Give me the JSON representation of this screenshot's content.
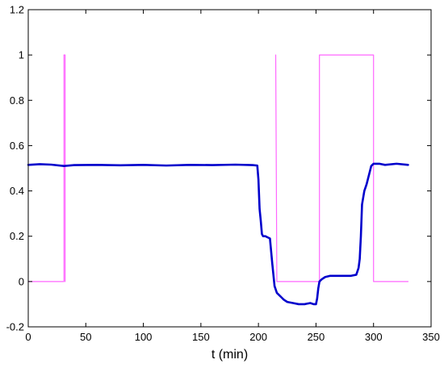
{
  "chart_data": {
    "type": "line",
    "title": "",
    "xlabel": "t (min)",
    "ylabel": "",
    "xlim": [
      0,
      350
    ],
    "ylim": [
      -0.2,
      1.2
    ],
    "x_ticks": [
      "0",
      "50",
      "100",
      "150",
      "200",
      "250",
      "300",
      "350"
    ],
    "y_ticks": [
      "-0.2",
      "0",
      "0.2",
      "0.4",
      "0.6",
      "0.8",
      "1",
      "1.2"
    ],
    "grid": false,
    "legend": "none",
    "series": [
      {
        "color": "#ff66ff",
        "style": "thin",
        "x": [
          0,
          31,
          31,
          32,
          32,
          126,
          215,
          215,
          216,
          217,
          217,
          253,
          253,
          254,
          254,
          300,
          300,
          301,
          301,
          330
        ],
        "y": [
          0,
          0,
          1,
          1,
          0,
          null,
          1,
          1,
          0,
          0,
          0,
          0,
          1,
          1,
          1,
          1,
          0,
          0,
          0,
          0
        ]
      },
      {
        "color": "#0000cc",
        "style": "thick",
        "x": [
          0,
          10,
          20,
          31,
          40,
          60,
          80,
          100,
          120,
          140,
          160,
          180,
          195,
          199,
          200,
          201,
          202,
          203,
          204,
          206,
          208,
          210,
          212,
          214,
          216,
          218,
          220,
          222,
          225,
          230,
          235,
          240,
          245,
          248,
          250,
          251,
          252,
          253,
          255,
          258,
          262,
          270,
          280,
          285,
          287,
          288,
          289,
          290,
          292,
          294,
          296,
          298,
          300,
          305,
          310,
          320,
          330
        ],
        "y": [
          0.515,
          0.518,
          0.516,
          0.51,
          0.514,
          0.515,
          0.513,
          0.515,
          0.512,
          0.515,
          0.514,
          0.516,
          0.514,
          0.512,
          0.45,
          0.32,
          0.27,
          0.21,
          0.2,
          0.2,
          0.195,
          0.19,
          0.08,
          -0.02,
          -0.05,
          -0.06,
          -0.07,
          -0.08,
          -0.09,
          -0.095,
          -0.1,
          -0.1,
          -0.095,
          -0.1,
          -0.1,
          -0.075,
          -0.03,
          0.0,
          0.01,
          0.02,
          0.025,
          0.025,
          0.025,
          0.03,
          0.06,
          0.1,
          0.2,
          0.34,
          0.4,
          0.43,
          0.47,
          0.51,
          0.52,
          0.52,
          0.515,
          0.52,
          0.515
        ]
      }
    ]
  }
}
